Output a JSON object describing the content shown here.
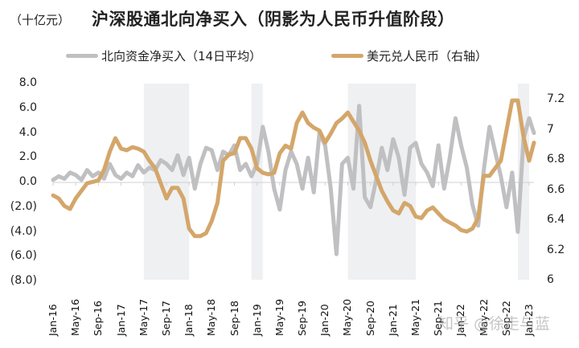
{
  "header": {
    "unit_label": "（十亿元）",
    "title": "沪深股通北向净买入（阴影为人民币升值阶段）"
  },
  "legend": [
    {
      "label": "北向资金净买入（14日平均）",
      "color": "#c0c0c2"
    },
    {
      "label": "美元兑人民币（右轴）",
      "color": "#d4a66a"
    }
  ],
  "watermark": "知乎 @徐走与蓝",
  "colors": {
    "shade": "#eef0f2",
    "zero_line": "#d0d0d0",
    "northbound": "#c0c0c2",
    "usdcny": "#d4a66a"
  },
  "chart_data": {
    "type": "line",
    "title": "沪深股通北向净买入（阴影为人民币升值阶段）",
    "ylabel": "（十亿元）",
    "y2label": "美元兑人民币",
    "ylim": [
      -8.0,
      8.0
    ],
    "y2lim": [
      6.0,
      7.2
    ],
    "left_ticks": [
      "8.0",
      "6.0",
      "4.0",
      "2.0",
      "0.0",
      "(2.0)",
      "(4.0)",
      "(6.0)",
      "(8.0)"
    ],
    "right_ticks": [
      "7.2",
      "7",
      "6.8",
      "6.6",
      "6.4",
      "6.2",
      "6"
    ],
    "x_ticks": [
      "Jan-16",
      "May-16",
      "Sep-16",
      "Jan-17",
      "May-17",
      "Sep-17",
      "Jan-18",
      "May-18",
      "Sep-18",
      "Jan-19",
      "May-19",
      "Sep-19",
      "Jan-20",
      "May-20",
      "Sep-20",
      "Jan-21",
      "May-21",
      "Sep-21",
      "Jan-22",
      "May-22",
      "Sep-22",
      "Jan-23"
    ],
    "shaded_periods": [
      {
        "start": "2017-05",
        "end": "2018-01"
      },
      {
        "start": "2018-12",
        "end": "2019-02"
      },
      {
        "start": "2020-05",
        "end": "2021-05"
      },
      {
        "start": "2022-11",
        "end": "2023-01"
      }
    ],
    "x": [
      "2016-01",
      "2016-02",
      "2016-03",
      "2016-04",
      "2016-05",
      "2016-06",
      "2016-07",
      "2016-08",
      "2016-09",
      "2016-10",
      "2016-11",
      "2016-12",
      "2017-01",
      "2017-02",
      "2017-03",
      "2017-04",
      "2017-05",
      "2017-06",
      "2017-07",
      "2017-08",
      "2017-09",
      "2017-10",
      "2017-11",
      "2017-12",
      "2018-01",
      "2018-02",
      "2018-03",
      "2018-04",
      "2018-05",
      "2018-06",
      "2018-07",
      "2018-08",
      "2018-09",
      "2018-10",
      "2018-11",
      "2018-12",
      "2019-01",
      "2019-02",
      "2019-03",
      "2019-04",
      "2019-05",
      "2019-06",
      "2019-07",
      "2019-08",
      "2019-09",
      "2019-10",
      "2019-11",
      "2019-12",
      "2020-01",
      "2020-02",
      "2020-03",
      "2020-04",
      "2020-05",
      "2020-06",
      "2020-07",
      "2020-08",
      "2020-09",
      "2020-10",
      "2020-11",
      "2020-12",
      "2021-01",
      "2021-02",
      "2021-03",
      "2021-04",
      "2021-05",
      "2021-06",
      "2021-07",
      "2021-08",
      "2021-09",
      "2021-10",
      "2021-11",
      "2021-12",
      "2022-01",
      "2022-02",
      "2022-03",
      "2022-04",
      "2022-05",
      "2022-06",
      "2022-07",
      "2022-08",
      "2022-09",
      "2022-10",
      "2022-11",
      "2022-12",
      "2023-01",
      "2023-02"
    ],
    "series": [
      {
        "name": "北向资金净买入（14日平均）",
        "axis": "left",
        "values": [
          0.2,
          0.5,
          0.3,
          0.8,
          0.6,
          0.2,
          1.0,
          0.5,
          0.8,
          0.3,
          1.5,
          0.6,
          0.3,
          0.8,
          0.5,
          1.4,
          0.8,
          1.2,
          1.0,
          1.8,
          1.5,
          1.0,
          2.2,
          0.6,
          2.0,
          -0.5,
          1.5,
          2.8,
          2.6,
          1.0,
          2.5,
          2.2,
          3.0,
          1.0,
          1.5,
          0.5,
          1.5,
          4.5,
          2.5,
          -0.5,
          -2.2,
          1.0,
          2.5,
          1.5,
          -0.5,
          2.0,
          -0.8,
          4.0,
          3.0,
          -0.5,
          -5.8,
          1.5,
          2.0,
          -0.5,
          6.2,
          -1.2,
          -2.0,
          0.2,
          2.8,
          1.0,
          3.5,
          2.0,
          -1.0,
          2.8,
          3.2,
          1.5,
          0.8,
          -0.3,
          3.0,
          -0.5,
          2.0,
          5.2,
          3.0,
          1.2,
          -1.8,
          -3.5,
          1.0,
          4.5,
          2.5,
          0.5,
          -2.0,
          0.8,
          -4.0,
          3.5,
          5.2,
          4.0
        ]
      },
      {
        "name": "美元兑人民币（右轴）",
        "axis": "right",
        "values": [
          6.57,
          6.55,
          6.5,
          6.48,
          6.55,
          6.6,
          6.65,
          6.66,
          6.67,
          6.74,
          6.86,
          6.95,
          6.88,
          6.87,
          6.89,
          6.88,
          6.86,
          6.8,
          6.75,
          6.65,
          6.55,
          6.62,
          6.62,
          6.55,
          6.35,
          6.3,
          6.3,
          6.32,
          6.4,
          6.52,
          6.8,
          6.84,
          6.85,
          6.95,
          6.95,
          6.88,
          6.75,
          6.72,
          6.71,
          6.72,
          6.85,
          6.9,
          6.88,
          7.05,
          7.12,
          7.05,
          7.02,
          7.0,
          6.92,
          6.98,
          7.05,
          7.08,
          7.12,
          7.06,
          7.0,
          6.92,
          6.8,
          6.7,
          6.6,
          6.53,
          6.47,
          6.45,
          6.52,
          6.5,
          6.43,
          6.42,
          6.47,
          6.49,
          6.45,
          6.41,
          6.39,
          6.37,
          6.34,
          6.33,
          6.35,
          6.42,
          6.7,
          6.7,
          6.75,
          6.8,
          7.0,
          7.2,
          7.2,
          6.96,
          6.8,
          6.92
        ]
      }
    ]
  }
}
